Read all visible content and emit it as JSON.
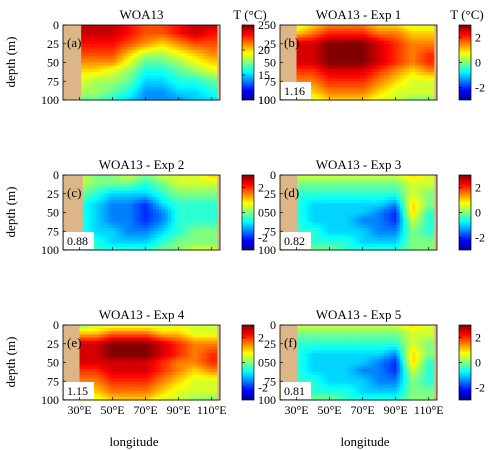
{
  "figure": {
    "ylabel": "depth (m)",
    "xlabel": "longitude",
    "colorbar_title": "T (°C)"
  },
  "chart_data": [
    {
      "type": "heatmap",
      "panel": "(a)",
      "title": "WOA13",
      "xlabel": "longitude",
      "ylabel": "depth (m)",
      "x": [
        30,
        40,
        50,
        60,
        70,
        80,
        90,
        100,
        110
      ],
      "y": [
        0,
        10,
        25,
        40,
        50,
        60,
        75,
        90,
        100
      ],
      "z": [
        [
          24,
          24,
          24,
          23,
          22,
          22,
          23,
          24,
          24
        ],
        [
          24,
          24,
          24,
          23,
          22,
          22,
          23,
          24,
          23
        ],
        [
          23,
          23,
          23,
          22,
          21,
          20,
          21,
          22,
          22
        ],
        [
          22,
          22,
          22,
          20,
          18,
          18,
          19,
          20,
          21
        ],
        [
          21,
          21,
          21,
          19,
          17,
          17,
          18,
          19,
          20
        ],
        [
          20,
          20,
          19,
          18,
          16,
          16,
          17,
          18,
          19
        ],
        [
          19,
          18,
          18,
          17,
          15,
          15,
          16,
          16,
          17
        ],
        [
          18,
          18,
          17,
          16,
          14,
          14,
          15,
          15,
          16
        ],
        [
          17,
          17,
          16,
          15,
          14,
          14,
          14,
          15,
          15
        ]
      ],
      "zlim": [
        10,
        25
      ],
      "colorbar_ticks": [
        10,
        15,
        20,
        25
      ],
      "colorbar_label": "T (°C)",
      "x_ticks": [
        "30°E",
        "50°E",
        "70°E",
        "90°E",
        "110°E"
      ],
      "y_ticks": [
        "0",
        "25",
        "50",
        "75",
        "100"
      ],
      "rmse": ""
    },
    {
      "type": "heatmap",
      "panel": "(b)",
      "title": "WOA13 - Exp 1",
      "x": [
        30,
        40,
        50,
        60,
        70,
        80,
        90,
        100,
        110
      ],
      "y": [
        0,
        10,
        25,
        40,
        50,
        60,
        75,
        90,
        100
      ],
      "z": [
        [
          0.5,
          1.0,
          1.5,
          1.5,
          1.5,
          1.0,
          1.0,
          0.5,
          0.5
        ],
        [
          1.0,
          1.5,
          2.0,
          2.0,
          2.0,
          1.5,
          1.5,
          1.0,
          1.0
        ],
        [
          2.5,
          2.5,
          3.0,
          3.0,
          3.0,
          2.5,
          2.0,
          1.5,
          1.5
        ],
        [
          2.5,
          2.5,
          3.0,
          3.0,
          3.0,
          2.5,
          2.0,
          1.5,
          2.0
        ],
        [
          2.5,
          2.5,
          3.0,
          3.0,
          3.0,
          2.5,
          2.0,
          1.5,
          2.0
        ],
        [
          2.0,
          2.0,
          2.5,
          2.5,
          2.5,
          2.0,
          1.5,
          1.0,
          1.5
        ],
        [
          1.5,
          1.5,
          2.0,
          2.0,
          2.0,
          1.5,
          1.0,
          0.5,
          0.5
        ],
        [
          1.0,
          1.0,
          1.5,
          1.5,
          1.5,
          1.0,
          0.5,
          0.5,
          0.5
        ],
        [
          0.5,
          0.5,
          1.0,
          1.0,
          1.0,
          0.5,
          0.5,
          0.0,
          0.0
        ]
      ],
      "zlim": [
        -3,
        3
      ],
      "colorbar_ticks": [
        -2,
        0,
        2
      ],
      "colorbar_label": "T (°C)",
      "x_ticks": [
        "30°E",
        "50°E",
        "70°E",
        "90°E",
        "110°E"
      ],
      "y_ticks": [
        "0",
        "25",
        "50",
        "75",
        "100"
      ],
      "rmse": "1.16"
    },
    {
      "type": "heatmap",
      "panel": "(c)",
      "title": "WOA13 - Exp 2",
      "x": [
        30,
        40,
        50,
        60,
        70,
        80,
        90,
        100,
        110
      ],
      "y": [
        0,
        10,
        25,
        40,
        50,
        60,
        75,
        90,
        100
      ],
      "z": [
        [
          0.5,
          0.0,
          0.0,
          0.5,
          0.0,
          0.5,
          0.5,
          0.5,
          1.0
        ],
        [
          0.5,
          0.0,
          0.0,
          0.0,
          -0.5,
          0.0,
          0.5,
          0.5,
          0.5
        ],
        [
          0.0,
          -0.5,
          -1.0,
          -1.0,
          -1.0,
          -0.5,
          0.0,
          0.0,
          0.0
        ],
        [
          -0.5,
          -1.0,
          -1.5,
          -1.5,
          -2.0,
          -1.0,
          -0.5,
          -0.5,
          -0.5
        ],
        [
          -0.5,
          -1.0,
          -1.5,
          -1.5,
          -2.0,
          -1.5,
          -0.5,
          -0.5,
          -0.5
        ],
        [
          -0.5,
          -1.0,
          -1.5,
          -1.5,
          -2.0,
          -1.5,
          -0.5,
          -0.5,
          -0.5
        ],
        [
          -0.5,
          -1.0,
          -1.0,
          -1.5,
          -1.5,
          -1.0,
          -0.5,
          0.0,
          0.0
        ],
        [
          0.0,
          -0.5,
          -1.0,
          -1.0,
          -1.0,
          -0.5,
          0.0,
          0.0,
          0.0
        ],
        [
          0.0,
          -0.5,
          -0.5,
          -0.5,
          -0.5,
          0.0,
          0.0,
          0.5,
          0.5
        ]
      ],
      "zlim": [
        -3,
        3
      ],
      "colorbar_ticks": [
        -2,
        0,
        2
      ],
      "colorbar_label": "",
      "x_ticks": [
        "30°E",
        "50°E",
        "70°E",
        "90°E",
        "110°E"
      ],
      "y_ticks": [
        "0",
        "25",
        "50",
        "75",
        "100"
      ],
      "rmse": "0.88"
    },
    {
      "type": "heatmap",
      "panel": "(d)",
      "title": "WOA13 - Exp 3",
      "x": [
        30,
        40,
        50,
        60,
        70,
        80,
        90,
        100,
        110
      ],
      "y": [
        0,
        10,
        25,
        40,
        50,
        60,
        75,
        90,
        100
      ],
      "z": [
        [
          0.5,
          0.5,
          0.5,
          0.5,
          0.5,
          0.5,
          0.5,
          1.0,
          0.5
        ],
        [
          0.0,
          0.0,
          0.0,
          0.0,
          0.0,
          0.0,
          0.0,
          0.5,
          0.5
        ],
        [
          -0.5,
          -0.5,
          -0.5,
          -0.5,
          -0.5,
          -0.5,
          -0.5,
          0.5,
          0.0
        ],
        [
          -0.5,
          -1.0,
          -1.0,
          -1.0,
          -1.0,
          -1.0,
          -1.5,
          1.0,
          0.0
        ],
        [
          -0.5,
          -1.0,
          -1.0,
          -1.0,
          -1.0,
          -1.5,
          -2.0,
          1.0,
          -0.5
        ],
        [
          -0.5,
          -1.0,
          -1.0,
          -1.0,
          -1.5,
          -1.5,
          -2.0,
          0.5,
          -0.5
        ],
        [
          -0.5,
          -0.5,
          -1.0,
          -1.0,
          -1.0,
          -1.5,
          -1.5,
          0.0,
          -0.5
        ],
        [
          0.0,
          -0.5,
          -0.5,
          -0.5,
          -1.0,
          -1.0,
          -1.0,
          0.0,
          0.0
        ],
        [
          0.0,
          0.0,
          0.0,
          -0.5,
          -0.5,
          -0.5,
          -0.5,
          0.0,
          0.0
        ]
      ],
      "zlim": [
        -3,
        3
      ],
      "colorbar_ticks": [
        -2,
        0,
        2
      ],
      "colorbar_label": "",
      "x_ticks": [
        "30°E",
        "50°E",
        "70°E",
        "90°E",
        "110°E"
      ],
      "y_ticks": [
        "0",
        "25",
        "50",
        "75",
        "100"
      ],
      "rmse": "0.82"
    },
    {
      "type": "heatmap",
      "panel": "(e)",
      "title": "WOA13 - Exp 4",
      "x": [
        30,
        40,
        50,
        60,
        70,
        80,
        90,
        100,
        110
      ],
      "y": [
        0,
        10,
        25,
        40,
        50,
        60,
        75,
        90,
        100
      ],
      "z": [
        [
          0.0,
          0.5,
          0.5,
          0.5,
          0.5,
          0.5,
          0.5,
          0.5,
          0.5
        ],
        [
          1.0,
          1.0,
          1.5,
          1.5,
          1.5,
          1.0,
          1.0,
          0.5,
          0.5
        ],
        [
          2.5,
          2.5,
          3.0,
          3.0,
          3.0,
          2.5,
          2.0,
          1.5,
          1.5
        ],
        [
          2.5,
          2.5,
          3.0,
          3.0,
          3.0,
          2.5,
          2.0,
          1.5,
          2.0
        ],
        [
          2.5,
          2.5,
          2.5,
          2.5,
          2.5,
          2.0,
          1.5,
          1.5,
          2.0
        ],
        [
          2.0,
          2.0,
          2.5,
          2.5,
          2.5,
          2.0,
          1.5,
          1.0,
          1.5
        ],
        [
          1.5,
          1.5,
          2.0,
          2.0,
          2.0,
          1.5,
          1.0,
          0.5,
          0.5
        ],
        [
          1.0,
          1.0,
          1.5,
          1.5,
          1.5,
          1.0,
          0.5,
          0.5,
          0.5
        ],
        [
          0.5,
          0.5,
          1.0,
          1.0,
          1.0,
          0.5,
          0.5,
          0.0,
          0.0
        ]
      ],
      "zlim": [
        -3,
        3
      ],
      "colorbar_ticks": [
        -2,
        0,
        2
      ],
      "colorbar_label": "",
      "x_ticks": [
        "30°E",
        "50°E",
        "70°E",
        "90°E",
        "110°E"
      ],
      "y_ticks": [
        "0",
        "25",
        "50",
        "75",
        "100"
      ],
      "rmse": "1.15"
    },
    {
      "type": "heatmap",
      "panel": "(f)",
      "title": "WOA13 - Exp 5",
      "x": [
        30,
        40,
        50,
        60,
        70,
        80,
        90,
        100,
        110
      ],
      "y": [
        0,
        10,
        25,
        40,
        50,
        60,
        75,
        90,
        100
      ],
      "z": [
        [
          0.5,
          0.5,
          0.5,
          0.5,
          0.5,
          0.5,
          0.5,
          1.0,
          0.5
        ],
        [
          0.0,
          0.0,
          0.0,
          0.0,
          0.0,
          0.0,
          0.0,
          0.5,
          0.5
        ],
        [
          -0.5,
          -0.5,
          -0.5,
          -0.5,
          -0.5,
          -0.5,
          -0.5,
          0.5,
          0.0
        ],
        [
          -0.5,
          -1.0,
          -1.0,
          -1.0,
          -1.0,
          -1.0,
          -1.5,
          1.0,
          0.0
        ],
        [
          -0.5,
          -1.0,
          -1.0,
          -1.0,
          -1.0,
          -1.5,
          -2.0,
          1.0,
          -0.5
        ],
        [
          -0.5,
          -1.0,
          -1.0,
          -1.0,
          -1.5,
          -1.5,
          -2.0,
          0.5,
          -0.5
        ],
        [
          -0.5,
          -0.5,
          -1.0,
          -1.0,
          -1.0,
          -1.5,
          -1.5,
          0.0,
          -0.5
        ],
        [
          0.0,
          -0.5,
          -0.5,
          -0.5,
          -1.0,
          -1.0,
          -1.0,
          0.0,
          0.0
        ],
        [
          0.0,
          0.0,
          0.0,
          -0.5,
          -0.5,
          -0.5,
          -0.5,
          0.0,
          0.0
        ]
      ],
      "zlim": [
        -3,
        3
      ],
      "colorbar_ticks": [
        -2,
        0,
        2
      ],
      "colorbar_label": "",
      "x_ticks": [
        "30°E",
        "50°E",
        "70°E",
        "90°E",
        "110°E"
      ],
      "y_ticks": [
        "0",
        "25",
        "50",
        "75",
        "100"
      ],
      "rmse": "0.81"
    }
  ],
  "colors": {
    "land": "#ddb687",
    "colormap": [
      "#00008f",
      "#0000ff",
      "#00ffff",
      "#ffff00",
      "#ff0000",
      "#800000"
    ]
  }
}
